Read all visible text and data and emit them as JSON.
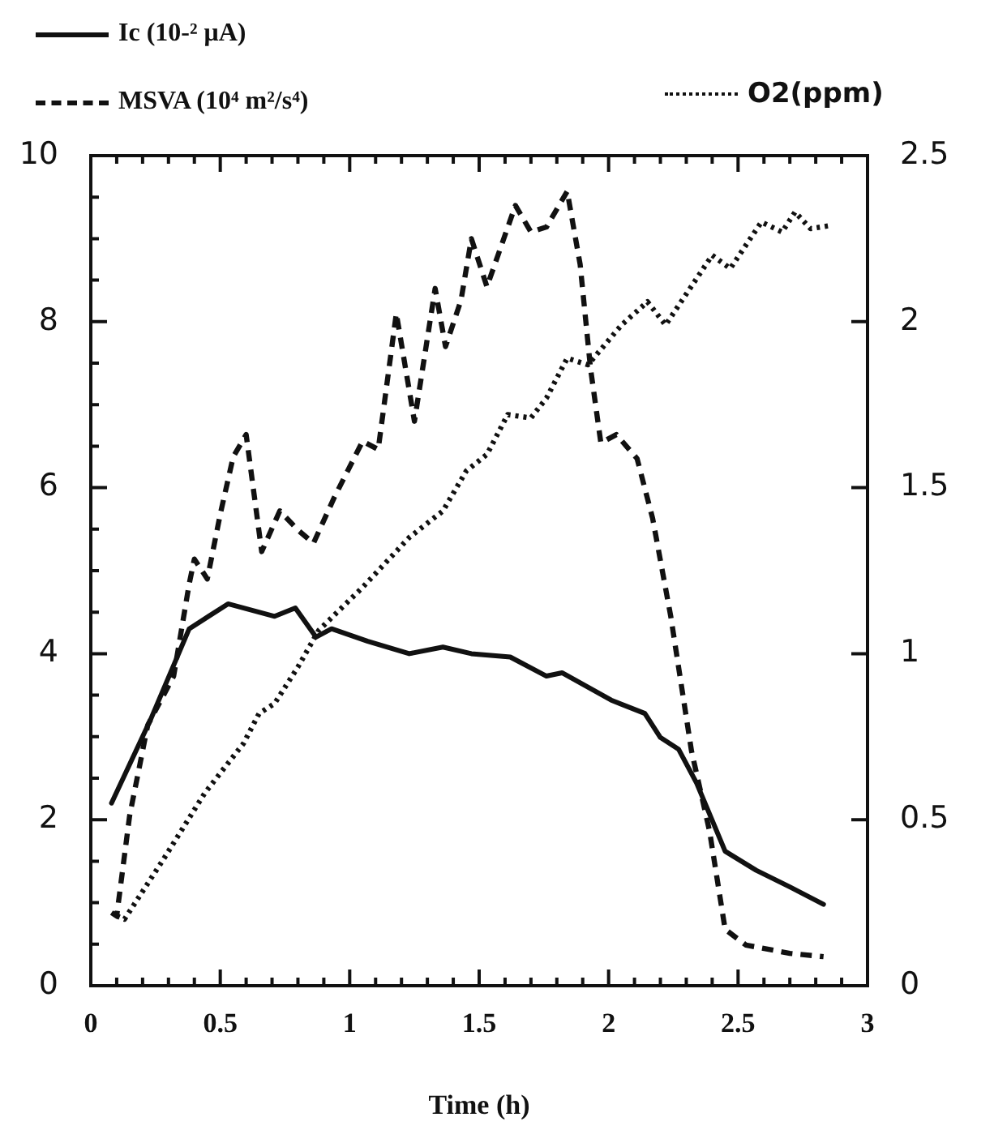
{
  "chart_data": {
    "type": "line",
    "xlabel": "Time (h)",
    "legend": "top",
    "grid": false,
    "marker": "none",
    "xlim": [
      0,
      3
    ],
    "xticks": [
      0,
      {
        "value": 0.1,
        "label": null
      },
      {
        "value": 0.2,
        "label": null
      },
      {
        "value": 0.3,
        "label": null
      },
      {
        "value": 0.4,
        "label": null
      },
      {
        "value": 0.5,
        "label": "0.5"
      },
      {
        "value": 0.6,
        "label": null
      },
      {
        "value": 0.7,
        "label": null
      },
      {
        "value": 0.8,
        "label": null
      },
      {
        "value": 0.9,
        "label": null
      },
      1,
      {
        "value": 1.1,
        "label": null
      },
      {
        "value": 1.2,
        "label": null
      },
      {
        "value": 1.3,
        "label": null
      },
      {
        "value": 1.4,
        "label": null
      },
      {
        "value": 1.5,
        "label": "1.5"
      },
      {
        "value": 1.6,
        "label": null
      },
      {
        "value": 1.7,
        "label": null
      },
      {
        "value": 1.8,
        "label": null
      },
      {
        "value": 1.9,
        "label": null
      },
      2,
      {
        "value": 2.1,
        "label": null
      },
      {
        "value": 2.2,
        "label": null
      },
      {
        "value": 2.3,
        "label": null
      },
      {
        "value": 2.4,
        "label": null
      },
      {
        "value": 2.5,
        "label": "2.5"
      },
      {
        "value": 2.6,
        "label": null
      },
      {
        "value": 2.7,
        "label": null
      },
      {
        "value": 2.8,
        "label": null
      },
      {
        "value": 2.9,
        "label": null
      },
      3
    ],
    "ylim": [
      0,
      10
    ],
    "yticks": [
      0,
      {
        "value": 0.5,
        "label": null
      },
      {
        "value": 1,
        "label": null
      },
      {
        "value": 1.5,
        "label": null
      },
      2,
      {
        "value": 2.5,
        "label": null
      },
      {
        "value": 3,
        "label": null
      },
      {
        "value": 3.5,
        "label": null
      },
      4,
      {
        "value": 4.5,
        "label": null
      },
      {
        "value": 5,
        "label": null
      },
      {
        "value": 5.5,
        "label": null
      },
      6,
      {
        "value": 6.5,
        "label": null
      },
      {
        "value": 7,
        "label": null
      },
      {
        "value": 7.5,
        "label": null
      },
      8,
      {
        "value": 8.5,
        "label": null
      },
      {
        "value": 9,
        "label": null
      },
      {
        "value": 9.5,
        "label": null
      },
      10
    ],
    "y2lim": [
      0,
      2.5
    ],
    "y2ticks": [
      0,
      0.5,
      1,
      1.5,
      2,
      2.5
    ],
    "series": [
      {
        "name": "Ic (10-² μA)",
        "color": "#111111",
        "line_style": "solid",
        "x": [
          0.08,
          0.23,
          0.38,
          0.53,
          0.71,
          0.79,
          0.87,
          0.93,
          1.07,
          1.23,
          1.36,
          1.47,
          1.62,
          1.76,
          1.82,
          2.01,
          2.14,
          2.2,
          2.27,
          2.34,
          2.45,
          2.57,
          2.7,
          2.83
        ],
        "values": [
          2.2,
          3.2,
          4.3,
          4.6,
          4.45,
          4.55,
          4.2,
          4.3,
          4.15,
          4.0,
          4.08,
          4.0,
          3.96,
          3.73,
          3.77,
          3.44,
          3.28,
          2.99,
          2.85,
          2.44,
          1.62,
          1.39,
          1.19,
          0.98
        ]
      },
      {
        "name": "MSVA (10⁴ m²/s⁴)",
        "color": "#111111",
        "line_style": "dashed",
        "x": [
          0.08,
          0.1,
          0.15,
          0.22,
          0.32,
          0.38,
          0.4,
          0.45,
          0.5,
          0.55,
          0.6,
          0.66,
          0.73,
          0.8,
          0.86,
          0.94,
          1.05,
          1.11,
          1.18,
          1.25,
          1.33,
          1.37,
          1.43,
          1.47,
          1.53,
          1.64,
          1.7,
          1.76,
          1.84,
          1.89,
          1.93,
          1.97,
          2.03,
          2.11,
          2.17,
          2.24,
          2.32,
          2.39,
          2.45,
          2.53,
          2.7,
          2.83
        ],
        "values": [
          0.88,
          0.84,
          2.05,
          3.14,
          3.73,
          4.84,
          5.14,
          4.9,
          5.68,
          6.37,
          6.64,
          5.23,
          5.72,
          5.49,
          5.33,
          5.88,
          6.56,
          6.46,
          8.1,
          6.8,
          8.4,
          7.7,
          8.26,
          9.0,
          8.42,
          9.4,
          9.08,
          9.14,
          9.57,
          8.69,
          7.44,
          6.54,
          6.64,
          6.35,
          5.63,
          4.45,
          2.83,
          1.86,
          0.68,
          0.49,
          0.39,
          0.35
        ]
      },
      {
        "name": "O2(ppm)",
        "color": "#111111",
        "line_style": "dotted",
        "axis": "y2",
        "x": [
          0.1,
          0.13,
          0.28,
          0.44,
          0.59,
          0.65,
          0.71,
          0.8,
          0.88,
          1.05,
          1.23,
          1.36,
          1.45,
          1.53,
          1.61,
          1.7,
          1.76,
          1.84,
          1.92,
          2.05,
          2.15,
          2.22,
          2.4,
          2.47,
          2.59,
          2.67,
          2.72,
          2.78,
          2.86
        ],
        "values": [
          0.21,
          0.2,
          0.38,
          0.58,
          0.73,
          0.82,
          0.85,
          0.96,
          1.07,
          1.2,
          1.35,
          1.43,
          1.55,
          1.6,
          1.72,
          1.71,
          1.77,
          1.89,
          1.87,
          1.99,
          2.06,
          1.99,
          2.2,
          2.16,
          2.3,
          2.27,
          2.33,
          2.28,
          2.29
        ]
      }
    ]
  }
}
